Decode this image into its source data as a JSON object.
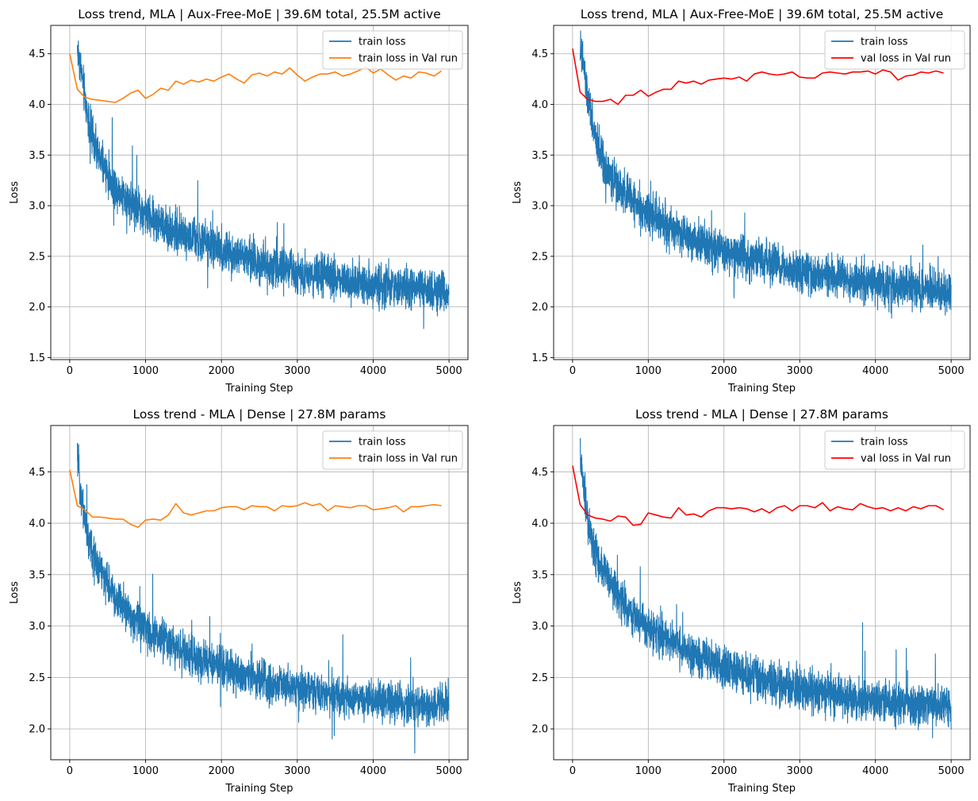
{
  "figure": {
    "background": "#ffffff",
    "colors": {
      "train_loss": "#1f77b4",
      "train_loss_val_run": "#ff7f0e",
      "val_loss_val_run": "#ff0000",
      "grid": "#b0b0b0"
    }
  },
  "chart_data": [
    {
      "type": "line",
      "title": "Loss trend, MLA | Aux-Free-MoE | 39.6M total, 25.5M active",
      "xlabel": "Training Step",
      "ylabel": "Loss",
      "xlim": [
        -250,
        5250
      ],
      "ylim": [
        1.48,
        4.78
      ],
      "xticks": [
        0,
        1000,
        2000,
        3000,
        4000,
        5000
      ],
      "xtick_labels": [
        "0",
        "1000",
        "2000",
        "3000",
        "4000",
        "5000"
      ],
      "yticks": [
        1.5,
        2.0,
        2.5,
        3.0,
        3.5,
        4.0,
        4.5
      ],
      "ytick_labels": [
        "1.5",
        "2.0",
        "2.5",
        "3.0",
        "3.5",
        "4.0",
        "4.5"
      ],
      "grid": true,
      "legend_position": "upper right",
      "series": [
        {
          "name": "train loss",
          "color": "#1f77b4",
          "kind": "noisy",
          "x_start": 100,
          "x_end": 5000,
          "trend": [
            [
              100,
              4.55
            ],
            [
              150,
              4.35
            ],
            [
              200,
              4.05
            ],
            [
              250,
              3.85
            ],
            [
              300,
              3.65
            ],
            [
              400,
              3.45
            ],
            [
              500,
              3.3
            ],
            [
              600,
              3.18
            ],
            [
              800,
              3.05
            ],
            [
              1000,
              2.92
            ],
            [
              1200,
              2.82
            ],
            [
              1500,
              2.72
            ],
            [
              1800,
              2.62
            ],
            [
              2000,
              2.55
            ],
            [
              2500,
              2.45
            ],
            [
              3000,
              2.34
            ],
            [
              3500,
              2.28
            ],
            [
              4000,
              2.22
            ],
            [
              4500,
              2.18
            ],
            [
              5000,
              2.15
            ]
          ],
          "noise_amplitude": 0.17
        },
        {
          "name": "train loss in Val run",
          "color": "#ff7f0e",
          "x": [
            0,
            100,
            200,
            300,
            400,
            500,
            600,
            700,
            800,
            900,
            1000,
            1100,
            1200,
            1300,
            1400,
            1500,
            1600,
            1700,
            1800,
            1900,
            2000,
            2100,
            2200,
            2300,
            2400,
            2500,
            2600,
            2700,
            2800,
            2900,
            3000,
            3100,
            3200,
            3300,
            3400,
            3500,
            3600,
            3700,
            3800,
            3900,
            4000,
            4100,
            4200,
            4300,
            4400,
            4500,
            4600,
            4700,
            4800,
            4900
          ],
          "y": [
            4.5,
            4.15,
            4.07,
            4.05,
            4.04,
            4.03,
            4.02,
            4.06,
            4.11,
            4.14,
            4.06,
            4.1,
            4.16,
            4.14,
            4.23,
            4.2,
            4.24,
            4.22,
            4.25,
            4.23,
            4.27,
            4.3,
            4.25,
            4.21,
            4.29,
            4.31,
            4.28,
            4.32,
            4.3,
            4.36,
            4.29,
            4.23,
            4.27,
            4.3,
            4.3,
            4.32,
            4.28,
            4.3,
            4.33,
            4.37,
            4.31,
            4.35,
            4.29,
            4.24,
            4.28,
            4.26,
            4.32,
            4.31,
            4.28,
            4.33
          ]
        }
      ]
    },
    {
      "type": "line",
      "title": "Loss trend, MLA | Aux-Free-MoE | 39.6M total, 25.5M active",
      "xlabel": "Training Step",
      "ylabel": "Loss",
      "xlim": [
        -250,
        5250
      ],
      "ylim": [
        1.48,
        4.78
      ],
      "xticks": [
        0,
        1000,
        2000,
        3000,
        4000,
        5000
      ],
      "xtick_labels": [
        "0",
        "1000",
        "2000",
        "3000",
        "4000",
        "5000"
      ],
      "yticks": [
        1.5,
        2.0,
        2.5,
        3.0,
        3.5,
        4.0,
        4.5
      ],
      "ytick_labels": [
        "1.5",
        "2.0",
        "2.5",
        "3.0",
        "3.5",
        "4.0",
        "4.5"
      ],
      "grid": true,
      "legend_position": "upper right",
      "series": [
        {
          "name": "train loss",
          "color": "#1f77b4",
          "kind": "noisy",
          "x_start": 100,
          "x_end": 5000,
          "trend": [
            [
              100,
              4.55
            ],
            [
              150,
              4.35
            ],
            [
              200,
              4.05
            ],
            [
              250,
              3.85
            ],
            [
              300,
              3.65
            ],
            [
              400,
              3.45
            ],
            [
              500,
              3.3
            ],
            [
              600,
              3.18
            ],
            [
              800,
              3.05
            ],
            [
              1000,
              2.92
            ],
            [
              1200,
              2.82
            ],
            [
              1500,
              2.72
            ],
            [
              1800,
              2.62
            ],
            [
              2000,
              2.55
            ],
            [
              2500,
              2.45
            ],
            [
              3000,
              2.34
            ],
            [
              3500,
              2.28
            ],
            [
              4000,
              2.22
            ],
            [
              4500,
              2.18
            ],
            [
              5000,
              2.15
            ]
          ],
          "noise_amplitude": 0.17
        },
        {
          "name": "val loss in Val run",
          "color": "#ff0000",
          "x": [
            0,
            100,
            200,
            300,
            400,
            500,
            600,
            700,
            800,
            900,
            1000,
            1100,
            1200,
            1300,
            1400,
            1500,
            1600,
            1700,
            1800,
            1900,
            2000,
            2100,
            2200,
            2300,
            2400,
            2500,
            2600,
            2700,
            2800,
            2900,
            3000,
            3100,
            3200,
            3300,
            3400,
            3500,
            3600,
            3700,
            3800,
            3900,
            4000,
            4100,
            4200,
            4300,
            4400,
            4500,
            4600,
            4700,
            4800,
            4900
          ],
          "y": [
            4.55,
            4.12,
            4.05,
            4.03,
            4.03,
            4.05,
            4.0,
            4.09,
            4.09,
            4.14,
            4.08,
            4.12,
            4.15,
            4.15,
            4.23,
            4.21,
            4.23,
            4.2,
            4.24,
            4.25,
            4.26,
            4.25,
            4.27,
            4.23,
            4.3,
            4.32,
            4.3,
            4.29,
            4.3,
            4.32,
            4.27,
            4.26,
            4.26,
            4.31,
            4.32,
            4.31,
            4.3,
            4.32,
            4.32,
            4.33,
            4.3,
            4.34,
            4.32,
            4.24,
            4.28,
            4.29,
            4.32,
            4.31,
            4.33,
            4.31
          ]
        }
      ]
    },
    {
      "type": "line",
      "title": "Loss trend - MLA | Dense | 27.8M params",
      "xlabel": "Training Step",
      "ylabel": "Loss",
      "xlim": [
        -250,
        5250
      ],
      "ylim": [
        1.7,
        4.95
      ],
      "xticks": [
        0,
        1000,
        2000,
        3000,
        4000,
        5000
      ],
      "xtick_labels": [
        "0",
        "1000",
        "2000",
        "3000",
        "4000",
        "5000"
      ],
      "yticks": [
        2.0,
        2.5,
        3.0,
        3.5,
        4.0,
        4.5
      ],
      "ytick_labels": [
        "2.0",
        "2.5",
        "3.0",
        "3.5",
        "4.0",
        "4.5"
      ],
      "grid": true,
      "legend_position": "upper right",
      "series": [
        {
          "name": "train loss",
          "color": "#1f77b4",
          "kind": "noisy",
          "x_start": 100,
          "x_end": 5000,
          "trend": [
            [
              100,
              4.65
            ],
            [
              150,
              4.3
            ],
            [
              200,
              4.05
            ],
            [
              250,
              3.85
            ],
            [
              300,
              3.7
            ],
            [
              400,
              3.55
            ],
            [
              500,
              3.4
            ],
            [
              600,
              3.28
            ],
            [
              800,
              3.1
            ],
            [
              1000,
              2.98
            ],
            [
              1200,
              2.88
            ],
            [
              1500,
              2.75
            ],
            [
              1800,
              2.65
            ],
            [
              2000,
              2.6
            ],
            [
              2500,
              2.47
            ],
            [
              3000,
              2.38
            ],
            [
              3500,
              2.32
            ],
            [
              4000,
              2.27
            ],
            [
              4500,
              2.24
            ],
            [
              5000,
              2.22
            ]
          ],
          "noise_amplitude": 0.16
        },
        {
          "name": "train loss in Val run",
          "color": "#ff7f0e",
          "x": [
            0,
            100,
            200,
            300,
            400,
            500,
            600,
            700,
            800,
            900,
            1000,
            1100,
            1200,
            1300,
            1400,
            1500,
            1600,
            1700,
            1800,
            1900,
            2000,
            2100,
            2200,
            2300,
            2400,
            2500,
            2600,
            2700,
            2800,
            2900,
            3000,
            3100,
            3200,
            3300,
            3400,
            3500,
            3600,
            3700,
            3800,
            3900,
            4000,
            4100,
            4200,
            4300,
            4400,
            4500,
            4600,
            4700,
            4800,
            4900
          ],
          "y": [
            4.52,
            4.17,
            4.13,
            4.06,
            4.06,
            4.05,
            4.04,
            4.04,
            3.99,
            3.96,
            4.03,
            4.04,
            4.03,
            4.08,
            4.19,
            4.1,
            4.08,
            4.1,
            4.12,
            4.12,
            4.15,
            4.16,
            4.16,
            4.13,
            4.17,
            4.16,
            4.16,
            4.12,
            4.17,
            4.16,
            4.17,
            4.2,
            4.17,
            4.19,
            4.12,
            4.17,
            4.16,
            4.15,
            4.17,
            4.17,
            4.13,
            4.14,
            4.15,
            4.17,
            4.11,
            4.16,
            4.16,
            4.17,
            4.18,
            4.17
          ]
        }
      ]
    },
    {
      "type": "line",
      "title": "Loss trend - MLA | Dense | 27.8M params",
      "xlabel": "Training Step",
      "ylabel": "Loss",
      "xlim": [
        -250,
        5250
      ],
      "ylim": [
        1.7,
        4.95
      ],
      "xticks": [
        0,
        1000,
        2000,
        3000,
        4000,
        5000
      ],
      "xtick_labels": [
        "0",
        "1000",
        "2000",
        "3000",
        "4000",
        "5000"
      ],
      "yticks": [
        2.0,
        2.5,
        3.0,
        3.5,
        4.0,
        4.5
      ],
      "ytick_labels": [
        "2.0",
        "2.5",
        "3.0",
        "3.5",
        "4.0",
        "4.5"
      ],
      "grid": true,
      "legend_position": "upper right",
      "series": [
        {
          "name": "train loss",
          "color": "#1f77b4",
          "kind": "noisy",
          "x_start": 100,
          "x_end": 5000,
          "trend": [
            [
              100,
              4.65
            ],
            [
              150,
              4.3
            ],
            [
              200,
              4.05
            ],
            [
              250,
              3.85
            ],
            [
              300,
              3.7
            ],
            [
              400,
              3.55
            ],
            [
              500,
              3.4
            ],
            [
              600,
              3.28
            ],
            [
              800,
              3.1
            ],
            [
              1000,
              2.98
            ],
            [
              1200,
              2.88
            ],
            [
              1500,
              2.75
            ],
            [
              1800,
              2.65
            ],
            [
              2000,
              2.6
            ],
            [
              2500,
              2.47
            ],
            [
              3000,
              2.38
            ],
            [
              3500,
              2.32
            ],
            [
              4000,
              2.27
            ],
            [
              4500,
              2.24
            ],
            [
              5000,
              2.22
            ]
          ],
          "noise_amplitude": 0.16
        },
        {
          "name": "val loss in Val run",
          "color": "#ff0000",
          "x": [
            0,
            100,
            200,
            300,
            400,
            500,
            600,
            700,
            800,
            900,
            1000,
            1100,
            1200,
            1300,
            1400,
            1500,
            1600,
            1700,
            1800,
            1900,
            2000,
            2100,
            2200,
            2300,
            2400,
            2500,
            2600,
            2700,
            2800,
            2900,
            3000,
            3100,
            3200,
            3300,
            3400,
            3500,
            3600,
            3700,
            3800,
            3900,
            4000,
            4100,
            4200,
            4300,
            4400,
            4500,
            4600,
            4700,
            4800,
            4900
          ],
          "y": [
            4.56,
            4.18,
            4.08,
            4.05,
            4.04,
            4.02,
            4.07,
            4.06,
            3.98,
            3.99,
            4.1,
            4.08,
            4.06,
            4.05,
            4.15,
            4.08,
            4.09,
            4.06,
            4.12,
            4.15,
            4.15,
            4.14,
            4.15,
            4.14,
            4.11,
            4.14,
            4.1,
            4.15,
            4.17,
            4.12,
            4.17,
            4.17,
            4.15,
            4.2,
            4.12,
            4.16,
            4.14,
            4.13,
            4.19,
            4.16,
            4.14,
            4.15,
            4.12,
            4.15,
            4.12,
            4.16,
            4.14,
            4.17,
            4.17,
            4.13
          ]
        }
      ]
    }
  ]
}
